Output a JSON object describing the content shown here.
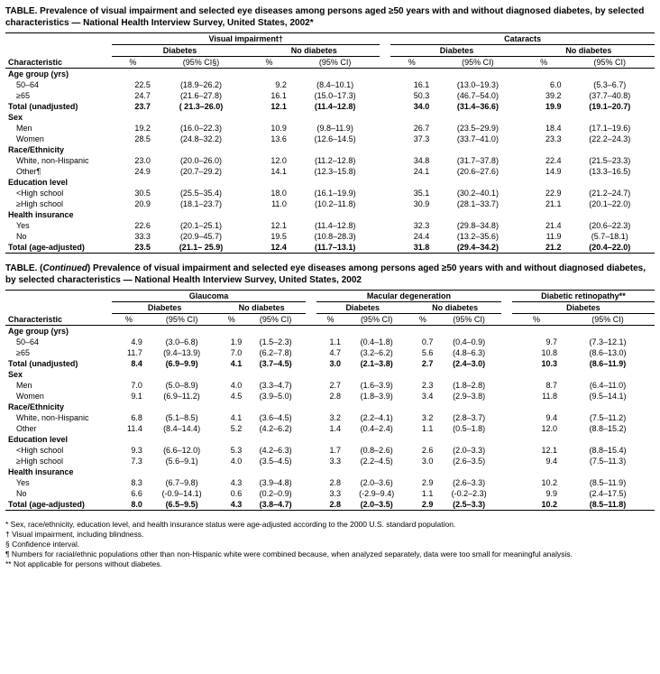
{
  "table1": {
    "title": "TABLE. Prevalence of visual impairment and selected eye diseases among persons aged ≥50 years with and without diagnosed diabetes, by selected characteristics — National Health Interview Survey, United States, 2002*",
    "spanners_top": [
      "Visual impairment†",
      "Cataracts"
    ],
    "spanners_sub": [
      "Diabetes",
      "No diabetes",
      "Diabetes",
      "No diabetes"
    ],
    "colhead_char": "Characteristic",
    "colhead_pct": "%",
    "colhead_ci1": "(95% CI§)",
    "colhead_ci": "(95% CI)",
    "rows": [
      {
        "type": "head",
        "label": "Age group (yrs)"
      },
      {
        "type": "data",
        "label": "50–64",
        "v": [
          "22.5",
          "(18.9–26.2)",
          "9.2",
          "(8.4–10.1)",
          "16.1",
          "(13.0–19.3)",
          "6.0",
          "(5.3–6.7)"
        ]
      },
      {
        "type": "data",
        "label": "≥65",
        "v": [
          "24.7",
          "(21.6–27.8)",
          "16.1",
          "(15.0–17.3)",
          "50.3",
          "(46.7–54.0)",
          "39.2",
          "(37.7–40.8)"
        ]
      },
      {
        "type": "bold",
        "label": "Total (unadjusted)",
        "v": [
          "23.7",
          "( 21.3–26.0)",
          "12.1",
          "(11.4–12.8)",
          "34.0",
          "(31.4–36.6)",
          "19.9",
          "(19.1–20.7)"
        ]
      },
      {
        "type": "head",
        "label": "Sex"
      },
      {
        "type": "data",
        "label": "Men",
        "v": [
          "19.2",
          "(16.0–22.3)",
          "10.9",
          "(9.8–11.9)",
          "26.7",
          "(23.5–29.9)",
          "18.4",
          "(17.1–19.6)"
        ]
      },
      {
        "type": "data",
        "label": "Women",
        "v": [
          "28.5",
          "(24.8–32.2)",
          "13.6",
          "(12.6–14.5)",
          "37.3",
          "(33.7–41.0)",
          "23.3",
          "(22.2–24.3)"
        ]
      },
      {
        "type": "head",
        "label": "Race/Ethnicity"
      },
      {
        "type": "data",
        "label": "White, non-Hispanic",
        "v": [
          "23.0",
          "(20.0–26.0)",
          "12.0",
          "(11.2–12.8)",
          "34.8",
          "(31.7–37.8)",
          "22.4",
          "(21.5–23.3)"
        ]
      },
      {
        "type": "data",
        "label": "Other¶",
        "v": [
          "24.9",
          "(20.7–29.2)",
          "14.1",
          "(12.3–15.8)",
          "24.1",
          "(20.6–27.6)",
          "14.9",
          "(13.3–16.5)"
        ]
      },
      {
        "type": "head",
        "label": "Education level"
      },
      {
        "type": "data",
        "label": "<High school",
        "v": [
          "30.5",
          "(25.5–35.4)",
          "18.0",
          "(16.1–19.9)",
          "35.1",
          "(30.2–40.1)",
          "22.9",
          "(21.2–24.7)"
        ]
      },
      {
        "type": "data",
        "label": "≥High school",
        "v": [
          "20.9",
          "(18.1–23.7)",
          "11.0",
          "(10.2–11.8)",
          "30.9",
          "(28.1–33.7)",
          "21.1",
          "(20.1–22.0)"
        ]
      },
      {
        "type": "head",
        "label": "Health insurance"
      },
      {
        "type": "data",
        "label": "Yes",
        "v": [
          "22.6",
          "(20.1–25.1)",
          "12.1",
          "(11.4–12.8)",
          "32.3",
          "(29.8–34.8)",
          "21.4",
          "(20.6–22.3)"
        ]
      },
      {
        "type": "data",
        "label": "No",
        "v": [
          "33.3",
          "(20.9–45.7)",
          "19.5",
          "(10.8–28.3)",
          "24.4",
          "(13.2–35.6)",
          "11.9",
          "(5.7–18.1)"
        ]
      },
      {
        "type": "bold",
        "label": "Total (age-adjusted)",
        "v": [
          "23.5",
          "(21.1– 25.9)",
          "12.4",
          "(11.7–13.1)",
          "31.8",
          "(29.4–34.2)",
          "21.2",
          "(20.4–22.0)"
        ]
      }
    ]
  },
  "table2": {
    "title": "TABLE. (Continued) Prevalence of visual impairment and selected eye diseases among persons aged ≥50 years with and without diagnosed diabetes, by selected characteristics — National Health Interview Survey, United States, 2002",
    "continued_italic": "Continued",
    "spanners_top": [
      "Glaucoma",
      "Macular degeneration",
      "Diabetic retinopathy**"
    ],
    "spanners_sub": [
      "Diabetes",
      "No diabetes",
      "Diabetes",
      "No diabetes",
      "Diabetes"
    ],
    "colhead_char": "Characteristic",
    "colhead_pct": "%",
    "colhead_ci": "(95% CI)",
    "rows": [
      {
        "type": "head",
        "label": "Age group (yrs)"
      },
      {
        "type": "data",
        "label": "50–64",
        "v": [
          "4.9",
          "(3.0–6.8)",
          "1.9",
          "(1.5–2.3)",
          "1.1",
          "(0.4–1.8)",
          "0.7",
          "(0.4–0.9)",
          "9.7",
          "(7.3–12.1)"
        ]
      },
      {
        "type": "data",
        "label": "≥65",
        "v": [
          "11.7",
          "(9.4–13.9)",
          "7.0",
          "(6.2–7.8)",
          "4.7",
          "(3.2–6.2)",
          "5.6",
          "(4.8–6.3)",
          "10.8",
          "(8.6–13.0)"
        ]
      },
      {
        "type": "bold",
        "label": "Total (unadjusted)",
        "v": [
          "8.4",
          "(6.9–9.9)",
          "4.1",
          "(3.7–4.5)",
          "3.0",
          "(2.1–3.8)",
          "2.7",
          "(2.4–3.0)",
          "10.3",
          "(8.6–11.9)"
        ]
      },
      {
        "type": "head",
        "label": "Sex"
      },
      {
        "type": "data",
        "label": "Men",
        "v": [
          "7.0",
          "(5.0–8.9)",
          "4.0",
          "(3.3–4.7)",
          "2.7",
          "(1.6–3.9)",
          "2.3",
          "(1.8–2.8)",
          "8.7",
          "(6.4–11.0)"
        ]
      },
      {
        "type": "data",
        "label": "Women",
        "v": [
          "9.1",
          "(6.9–11.2)",
          "4.5",
          "(3.9–5.0)",
          "2.8",
          "(1.8–3.9)",
          "3.4",
          "(2.9–3.8)",
          "11.8",
          "(9.5–14.1)"
        ]
      },
      {
        "type": "head",
        "label": "Race/Ethnicity"
      },
      {
        "type": "data",
        "label": "White, non-Hispanic",
        "v": [
          "6.8",
          "(5.1–8.5)",
          "4.1",
          "(3.6–4.5)",
          "3.2",
          "(2.2–4.1)",
          "3.2",
          "(2.8–3.7)",
          "9.4",
          "(7.5–11.2)"
        ]
      },
      {
        "type": "data",
        "label": "Other",
        "v": [
          "11.4",
          "(8.4–14.4)",
          "5.2",
          "(4.2–6.2)",
          "1.4",
          "(0.4–2.4)",
          "1.1",
          "(0.5–1.8)",
          "12.0",
          "(8.8–15.2)"
        ]
      },
      {
        "type": "head",
        "label": "Education level"
      },
      {
        "type": "data",
        "label": "<High school",
        "v": [
          "9.3",
          "(6.6–12.0)",
          "5.3",
          "(4.2–6.3)",
          "1.7",
          "(0.8–2.6)",
          "2.6",
          "(2.0–3.3)",
          "12.1",
          "(8.8–15.4)"
        ]
      },
      {
        "type": "data",
        "label": "≥High school",
        "v": [
          "7.3",
          "(5.6–9.1)",
          "4.0",
          "(3.5–4.5)",
          "3.3",
          "(2.2–4.5)",
          "3.0",
          "(2.6–3.5)",
          "9.4",
          "(7.5–11.3)"
        ]
      },
      {
        "type": "head",
        "label": "Health insurance"
      },
      {
        "type": "data",
        "label": "Yes",
        "v": [
          "8.3",
          "(6.7–9.8)",
          "4.3",
          "(3.9–4.8)",
          "2.8",
          "(2.0–3.6)",
          "2.9",
          "(2.6–3.3)",
          "10.2",
          "(8.5–11.9)"
        ]
      },
      {
        "type": "data",
        "label": "No",
        "v": [
          "6.6",
          "(-0.9–14.1)",
          "0.6",
          "(0.2–0.9)",
          "3.3",
          "(-2.9–9.4)",
          "1.1",
          "(-0.2–2.3)",
          "9.9",
          "(2.4–17.5)"
        ]
      },
      {
        "type": "bold",
        "label": "Total (age-adjusted)",
        "v": [
          "8.0",
          "(6.5–9.5)",
          "4.3",
          "(3.8–4.7)",
          "2.8",
          "(2.0–3.5)",
          "2.9",
          "(2.5–3.3)",
          "10.2",
          "(8.5–11.8)"
        ]
      }
    ]
  },
  "footnotes": [
    "* Sex, race/ethnicity, education level, and health insurance status were age-adjusted according to the 2000 U.S. standard population.",
    "† Visual impairment, including blindness.",
    "§ Confidence interval.",
    "¶ Numbers for racial/ethnic populations other than non-Hispanic white were combined because, when analyzed separately, data were too small for meaningful analysis.",
    "** Not applicable for persons without diabetes."
  ]
}
